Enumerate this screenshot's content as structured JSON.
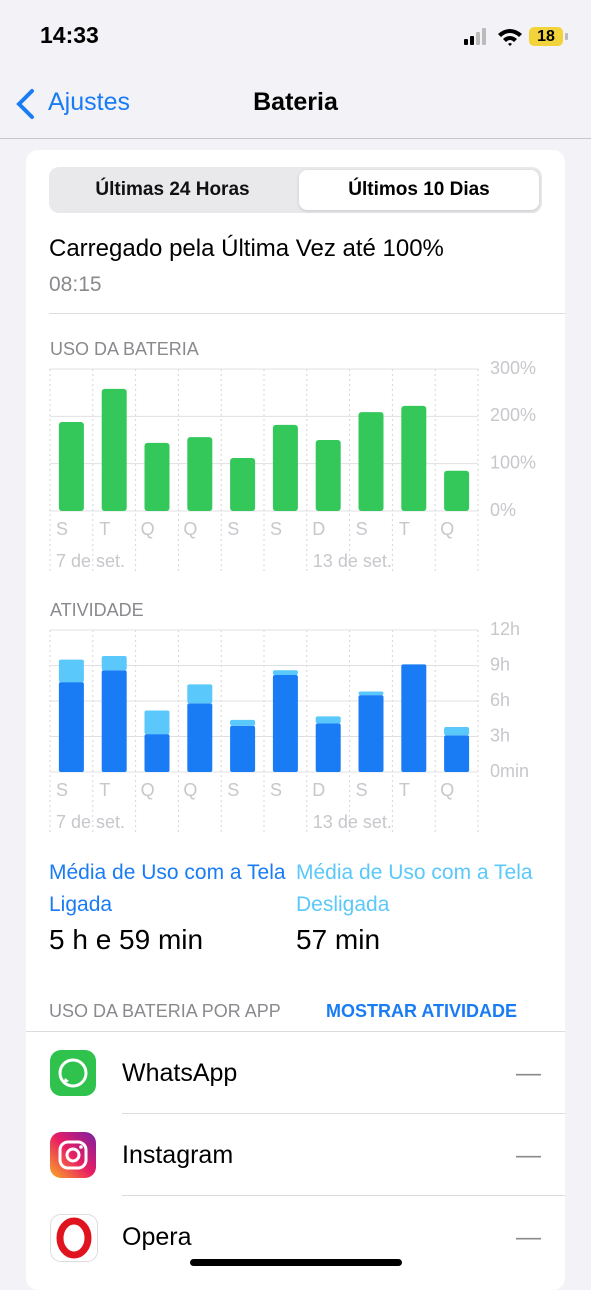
{
  "status_bar": {
    "time": "14:33",
    "battery": "18"
  },
  "nav": {
    "back": "Ajustes",
    "title": "Bateria"
  },
  "segments": [
    "Últimas 24 Horas",
    "Últimos 10 Dias"
  ],
  "charged": {
    "text": "Carregado pela Última Vez até 100%",
    "time": "08:15"
  },
  "chart_data": [
    {
      "type": "bar",
      "title": "USO DA BATERIA",
      "categories": [
        "S",
        "T",
        "Q",
        "Q",
        "S",
        "S",
        "D",
        "S",
        "T",
        "Q"
      ],
      "date_labels": [
        "7 de set.",
        null,
        null,
        null,
        null,
        null,
        "13 de set.",
        null,
        null,
        null
      ],
      "values": [
        188,
        258,
        144,
        156,
        112,
        182,
        150,
        209,
        222,
        85
      ],
      "color": "#34c759",
      "ylim": [
        0,
        300
      ],
      "yticks": [
        {
          "value": 0,
          "label": "0%"
        },
        {
          "value": 100,
          "label": "100%"
        },
        {
          "value": 200,
          "label": "200%"
        },
        {
          "value": 300,
          "label": "300%"
        }
      ],
      "grid": true
    },
    {
      "type": "stacked_bar",
      "title": "ATIVIDADE",
      "categories": [
        "S",
        "T",
        "Q",
        "Q",
        "S",
        "S",
        "D",
        "S",
        "T",
        "Q"
      ],
      "date_labels": [
        "7 de set.",
        null,
        null,
        null,
        null,
        null,
        "13 de set.",
        null,
        null,
        null
      ],
      "series": [
        {
          "name": "Média de Uso com a Tela Ligada",
          "color": "#1a7cf5",
          "values": [
            7.6,
            8.6,
            3.2,
            5.8,
            3.9,
            8.2,
            4.1,
            6.5,
            9.1,
            3.1
          ]
        },
        {
          "name": "Média de Uso com a Tela Desligada",
          "color": "#5ac8fa",
          "values": [
            1.9,
            1.2,
            2.0,
            1.6,
            0.5,
            0.4,
            0.6,
            0.3,
            0,
            0.7
          ]
        }
      ],
      "ylim": [
        0,
        12
      ],
      "yticks": [
        {
          "value": 0,
          "label": "0min"
        },
        {
          "value": 3,
          "label": "3h"
        },
        {
          "value": 6,
          "label": "6h"
        },
        {
          "value": 9,
          "label": "9h"
        },
        {
          "value": 12,
          "label": "12h"
        }
      ],
      "grid": true
    }
  ],
  "averages": [
    "5 h e 59 min",
    "57 min"
  ],
  "apps_section": {
    "title": "USO DA BATERIA POR APP",
    "action": "MOSTRAR ATIVIDADE"
  },
  "apps": [
    {
      "name": "WhatsApp",
      "usage": "—"
    },
    {
      "name": "Instagram",
      "usage": "—"
    },
    {
      "name": "Opera",
      "usage": "—"
    }
  ]
}
